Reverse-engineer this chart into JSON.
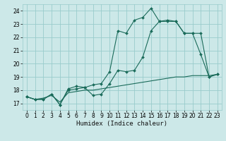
{
  "xlabel": "Humidex (Indice chaleur)",
  "bg_color": "#cce8e8",
  "grid_color": "#99cccc",
  "line_color": "#1a6b5a",
  "xlim": [
    -0.5,
    23.5
  ],
  "ylim": [
    16.5,
    24.5
  ],
  "xticks": [
    0,
    1,
    2,
    3,
    4,
    5,
    6,
    7,
    8,
    9,
    10,
    11,
    12,
    13,
    14,
    15,
    16,
    17,
    18,
    19,
    20,
    21,
    22,
    23
  ],
  "yticks": [
    17,
    18,
    19,
    20,
    21,
    22,
    23,
    24
  ],
  "series1_x": [
    0,
    1,
    2,
    3,
    4,
    5,
    6,
    7,
    8,
    9,
    10,
    11,
    12,
    13,
    14,
    15,
    16,
    17,
    18,
    19,
    20,
    21,
    22,
    23
  ],
  "series1_y": [
    17.5,
    17.3,
    17.3,
    17.7,
    16.9,
    18.1,
    18.3,
    18.2,
    17.6,
    17.7,
    18.5,
    19.5,
    19.4,
    19.5,
    20.5,
    22.5,
    23.2,
    23.3,
    23.2,
    22.3,
    22.3,
    20.7,
    19.0,
    19.2
  ],
  "series2_x": [
    0,
    1,
    2,
    3,
    4,
    5,
    6,
    7,
    8,
    9,
    10,
    11,
    12,
    13,
    14,
    15,
    16,
    17,
    18,
    19,
    20,
    21,
    22,
    23
  ],
  "series2_y": [
    17.5,
    17.3,
    17.3,
    17.7,
    16.9,
    18.0,
    18.1,
    18.2,
    18.4,
    18.5,
    19.4,
    22.5,
    22.3,
    23.3,
    23.5,
    24.2,
    23.2,
    23.2,
    23.2,
    22.3,
    22.3,
    22.3,
    19.0,
    19.2
  ],
  "series3_x": [
    0,
    1,
    2,
    3,
    4,
    5,
    6,
    7,
    8,
    9,
    10,
    11,
    12,
    13,
    14,
    15,
    16,
    17,
    18,
    19,
    20,
    21,
    22,
    23
  ],
  "series3_y": [
    17.5,
    17.3,
    17.4,
    17.6,
    17.1,
    17.8,
    17.9,
    18.0,
    18.0,
    18.1,
    18.2,
    18.3,
    18.4,
    18.5,
    18.6,
    18.7,
    18.8,
    18.9,
    19.0,
    19.0,
    19.1,
    19.1,
    19.1,
    19.2
  ],
  "tick_fontsize": 5.5,
  "xlabel_fontsize": 6.5
}
